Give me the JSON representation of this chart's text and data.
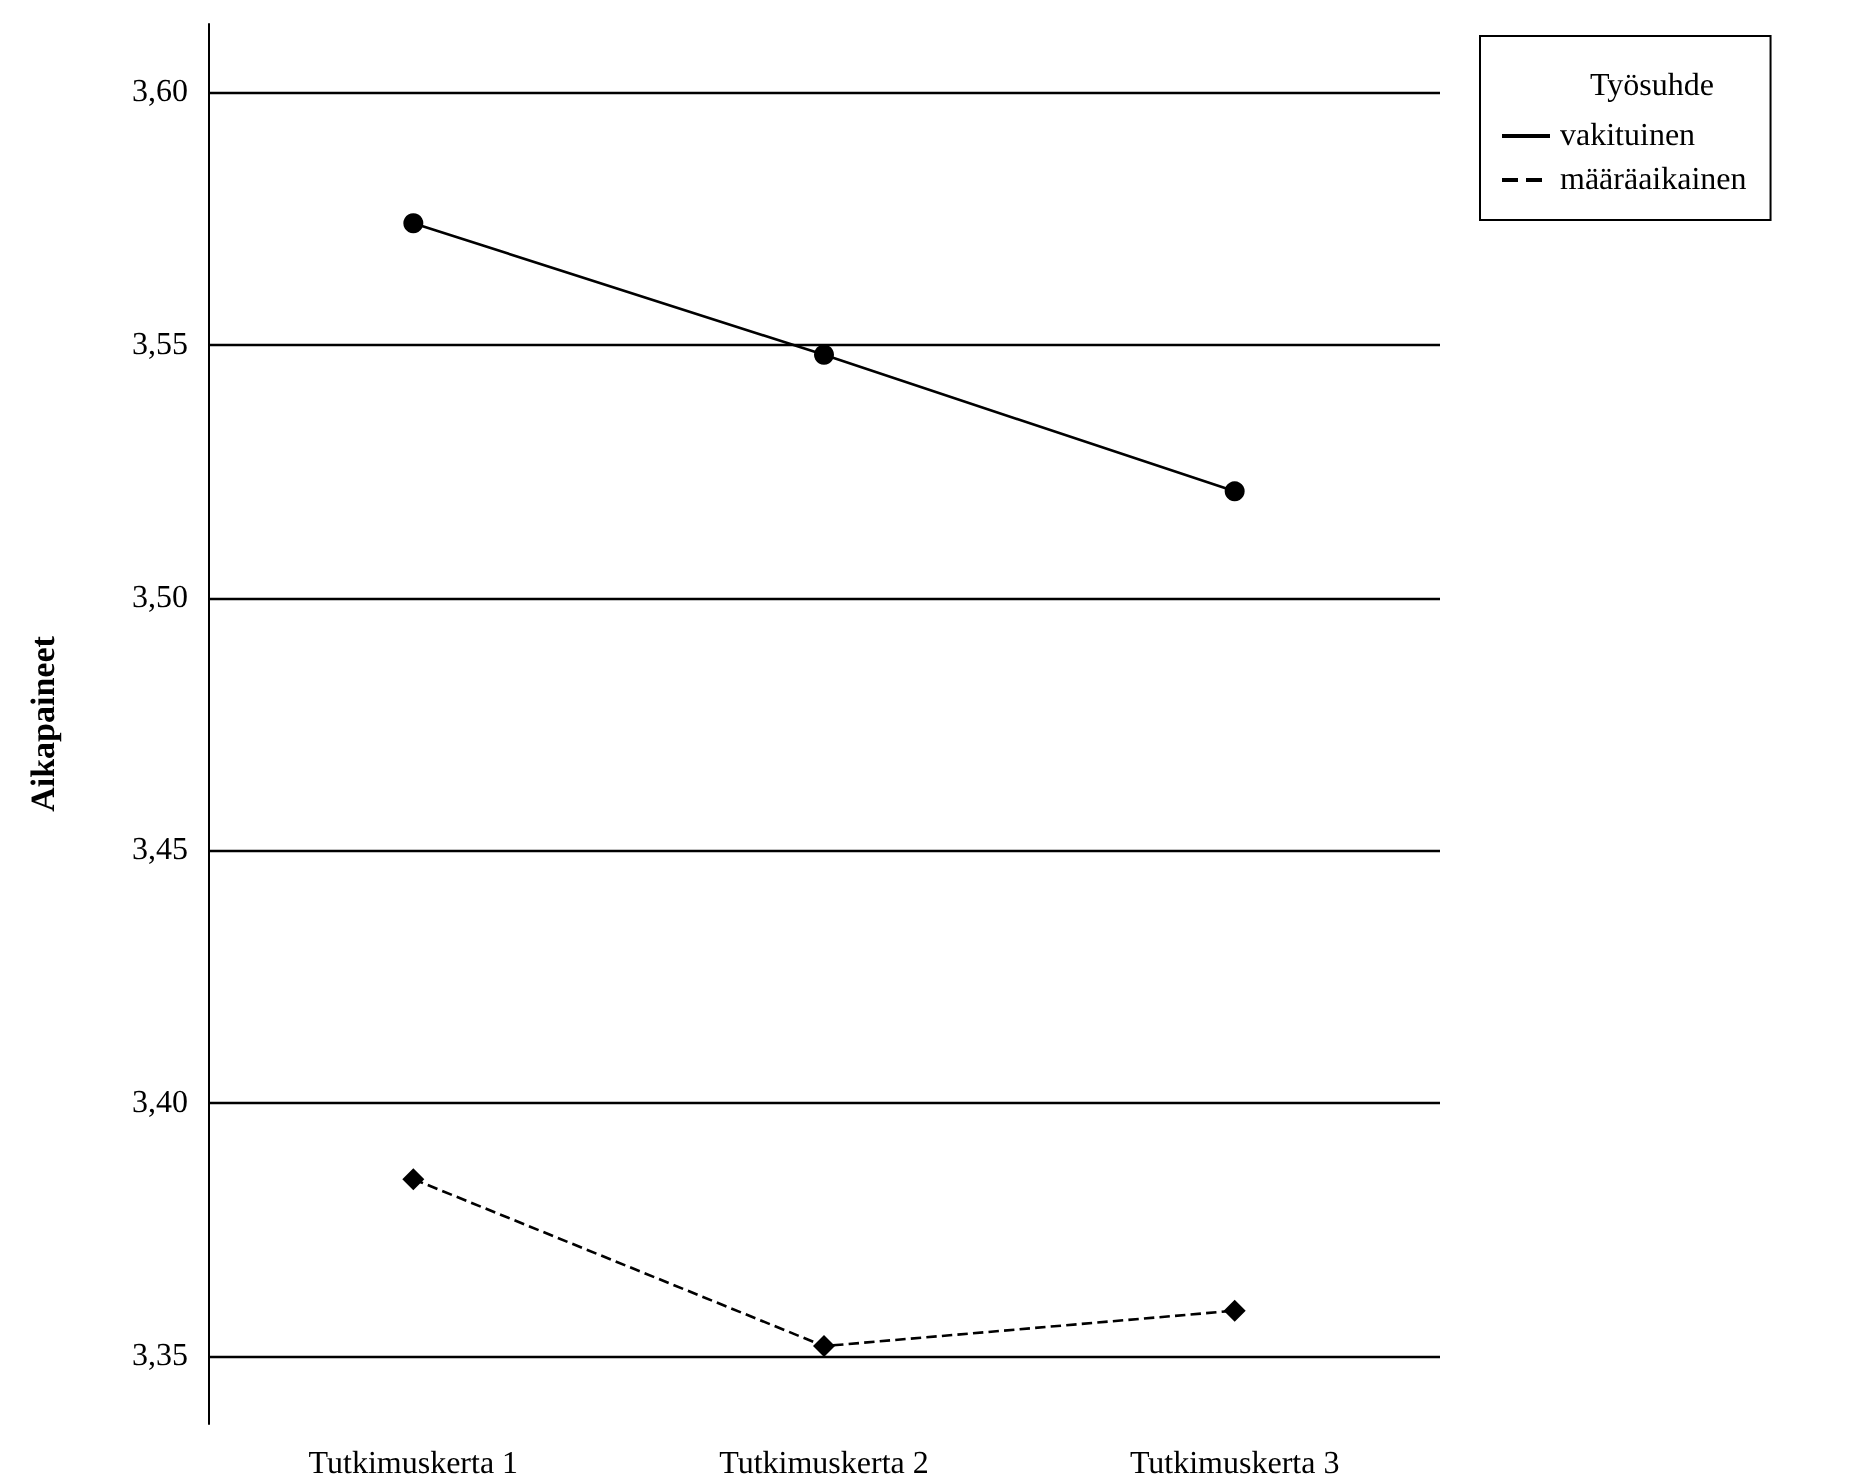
{
  "chart_data": {
    "type": "line",
    "ylabel": "Aikapaineet",
    "legend_title": "Työsuhde",
    "categories": [
      "Tutkimuskerta 1",
      "Tutkimuskerta 2",
      "Tutkimuskerta 3"
    ],
    "series": [
      {
        "name": "vakituinen",
        "color": "#000000",
        "values": [
          3.574,
          3.548,
          3.521
        ],
        "marker": "circle",
        "line_style": "solid"
      },
      {
        "name": "määräaikainen",
        "color": "#000000",
        "values": [
          3.385,
          3.352,
          3.359
        ],
        "marker": "diamond",
        "line_style": "dashed"
      }
    ],
    "ylim": [
      3.3366,
      3.6134
    ],
    "yticks": [
      {
        "value": 3.35,
        "label": "3,35"
      },
      {
        "value": 3.4,
        "label": "3,40"
      },
      {
        "value": 3.45,
        "label": "3,45"
      },
      {
        "value": 3.5,
        "label": "3,50"
      },
      {
        "value": 3.55,
        "label": "3,55"
      },
      {
        "value": 3.6,
        "label": "3,60"
      }
    ],
    "grid": "y",
    "legend": "top right"
  }
}
